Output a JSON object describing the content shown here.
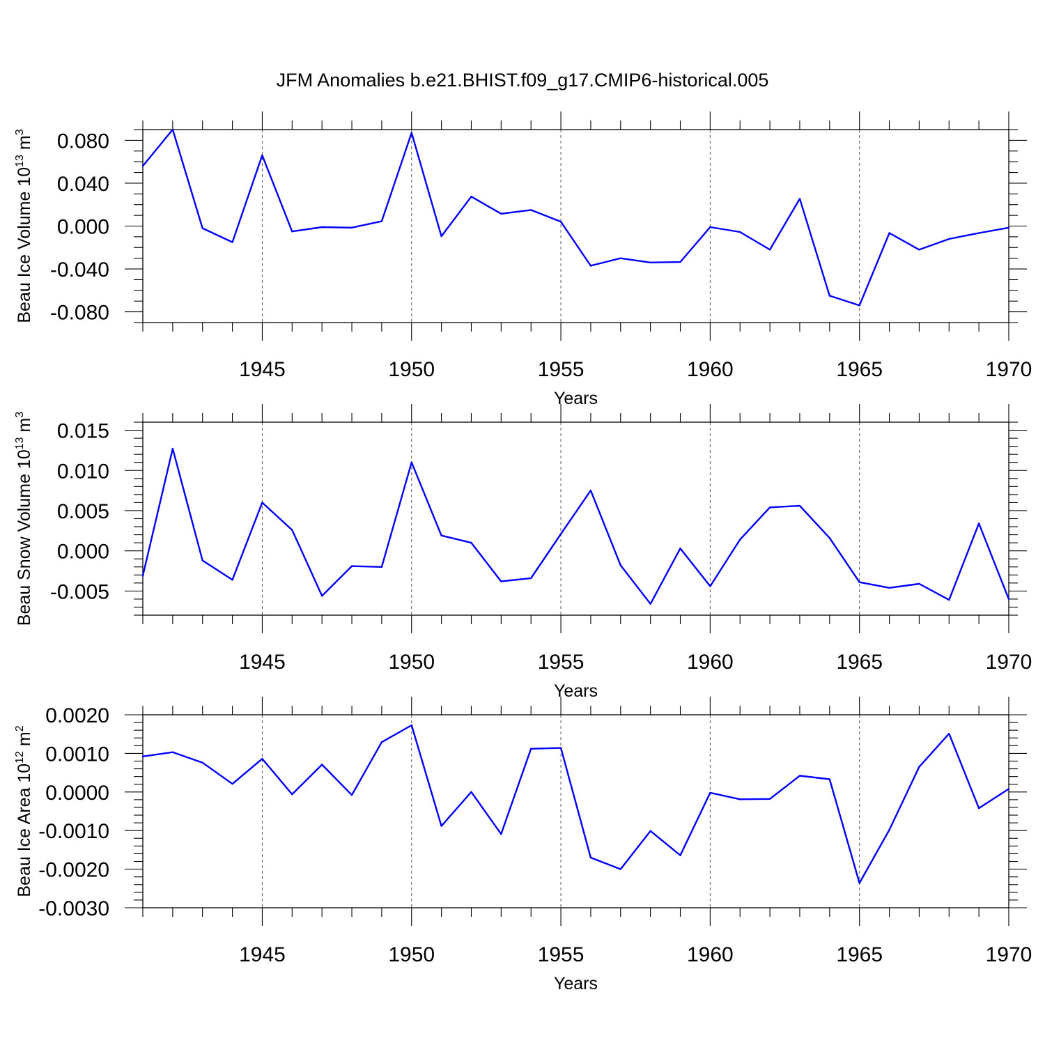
{
  "title": "JFM Anomalies b.e21.BHIST.f09_g17.CMIP6-historical.005",
  "colors": {
    "line": "#0000ff",
    "grid": "#555555",
    "axis": "#000000"
  },
  "chart_data": [
    {
      "type": "line",
      "id": "ice-volume",
      "ylabel_main": "Beau Ice Volume 10",
      "ylabel_exp": "13",
      "ylabel_unit": " m",
      "ylabel_unit_exp": "3",
      "xlabel": "Years",
      "xlim": [
        1941,
        1970
      ],
      "ylim": [
        -0.09,
        0.09
      ],
      "x_ticks": [
        1945,
        1950,
        1955,
        1960,
        1965,
        1970
      ],
      "x_tick_labels": [
        "1945",
        "1950",
        "1955",
        "1960",
        "1965",
        "1970"
      ],
      "y_ticks": [
        -0.08,
        -0.04,
        0.0,
        0.04,
        0.08
      ],
      "y_tick_labels": [
        "-0.080",
        "-0.040",
        "0.000",
        "0.040",
        "0.080"
      ],
      "y_minor_step": 0.01,
      "grid_x": [
        1945,
        1950,
        1955,
        1960,
        1965
      ],
      "x": [
        1941,
        1942,
        1943,
        1944,
        1945,
        1946,
        1947,
        1948,
        1949,
        1950,
        1951,
        1952,
        1953,
        1954,
        1955,
        1956,
        1957,
        1958,
        1959,
        1960,
        1961,
        1962,
        1963,
        1964,
        1965,
        1966,
        1967,
        1968,
        1969,
        1970
      ],
      "values": [
        0.056,
        0.09,
        -0.002,
        -0.015,
        0.066,
        -0.005,
        -0.001,
        -0.0015,
        0.0045,
        0.087,
        -0.0095,
        0.0275,
        0.0115,
        0.015,
        0.004,
        -0.037,
        -0.03,
        -0.034,
        -0.0335,
        -0.001,
        -0.0055,
        -0.022,
        0.0255,
        -0.065,
        -0.074,
        -0.0065,
        -0.022,
        -0.012,
        -0.0065,
        -0.0015
      ]
    },
    {
      "type": "line",
      "id": "snow-volume",
      "ylabel_main": "Beau Snow Volume 10",
      "ylabel_exp": "13",
      "ylabel_unit": " m",
      "ylabel_unit_exp": "3",
      "xlabel": "Years",
      "xlim": [
        1941,
        1970
      ],
      "ylim": [
        -0.008,
        0.016
      ],
      "x_ticks": [
        1945,
        1950,
        1955,
        1960,
        1965,
        1970
      ],
      "x_tick_labels": [
        "1945",
        "1950",
        "1955",
        "1960",
        "1965",
        "1970"
      ],
      "y_ticks": [
        -0.005,
        0.0,
        0.005,
        0.01,
        0.015
      ],
      "y_tick_labels": [
        "-0.005",
        "0.000",
        "0.005",
        "0.010",
        "0.015"
      ],
      "y_minor_step": 0.001,
      "grid_x": [
        1945,
        1950,
        1955,
        1960,
        1965
      ],
      "x": [
        1941,
        1942,
        1943,
        1944,
        1945,
        1946,
        1947,
        1948,
        1949,
        1950,
        1951,
        1952,
        1953,
        1954,
        1955,
        1956,
        1957,
        1958,
        1959,
        1960,
        1961,
        1962,
        1963,
        1964,
        1965,
        1966,
        1967,
        1968,
        1969,
        1970
      ],
      "values": [
        -0.0031,
        0.0127,
        -0.0012,
        -0.0036,
        0.006,
        0.0026,
        -0.0056,
        -0.0019,
        -0.002,
        0.011,
        0.0019,
        0.001,
        -0.0038,
        -0.0034,
        0.0021,
        0.0075,
        -0.0018,
        -0.0066,
        0.0003,
        -0.0044,
        0.0014,
        0.0054,
        0.0056,
        0.0016,
        -0.0039,
        -0.0046,
        -0.0041,
        -0.0061,
        0.0034,
        -0.006
      ]
    },
    {
      "type": "line",
      "id": "ice-area",
      "ylabel_main": "Beau Ice Area 10",
      "ylabel_exp": "12",
      "ylabel_unit": " m",
      "ylabel_unit_exp": "2",
      "xlabel": "Years",
      "xlim": [
        1941,
        1970
      ],
      "ylim": [
        -0.003,
        0.002
      ],
      "x_ticks": [
        1945,
        1950,
        1955,
        1960,
        1965,
        1970
      ],
      "x_tick_labels": [
        "1945",
        "1950",
        "1955",
        "1960",
        "1965",
        "1970"
      ],
      "y_ticks": [
        -0.003,
        -0.002,
        -0.001,
        0.0,
        0.001,
        0.002
      ],
      "y_tick_labels": [
        "-0.0030",
        "-0.0020",
        "-0.0010",
        "0.0000",
        "0.0010",
        "0.0020"
      ],
      "y_minor_step": 0.0002,
      "grid_x": [
        1945,
        1950,
        1955,
        1960,
        1965
      ],
      "x": [
        1941,
        1942,
        1943,
        1944,
        1945,
        1946,
        1947,
        1948,
        1949,
        1950,
        1951,
        1952,
        1953,
        1954,
        1955,
        1956,
        1957,
        1958,
        1959,
        1960,
        1961,
        1962,
        1963,
        1964,
        1965,
        1966,
        1967,
        1968,
        1969,
        1970
      ],
      "values": [
        0.00092,
        0.00103,
        0.00076,
        0.00021,
        0.00086,
        -6e-05,
        0.00071,
        -8e-05,
        0.00129,
        0.00173,
        -0.00088,
        0.0,
        -0.00109,
        0.00112,
        0.00114,
        -0.0017,
        -0.002,
        -0.00101,
        -0.00164,
        -2e-05,
        -0.00019,
        -0.00018,
        0.00042,
        0.00033,
        -0.00236,
        -0.00098,
        0.00065,
        0.00151,
        -0.00042,
        8e-05
      ]
    }
  ]
}
